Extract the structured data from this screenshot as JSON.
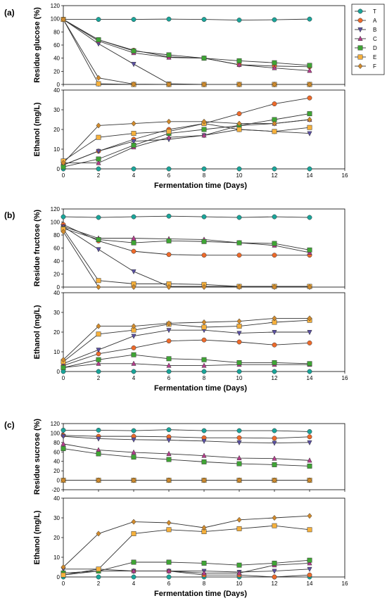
{
  "styles": {
    "T": {
      "color": "#1aa59a",
      "marker": "circle"
    },
    "A": {
      "color": "#ee6a2a",
      "marker": "circle"
    },
    "B": {
      "color": "#5a4fa3",
      "marker": "tri-down"
    },
    "C": {
      "color": "#b43c8c",
      "marker": "tri-up"
    },
    "D": {
      "color": "#3fa535",
      "marker": "square"
    },
    "E": {
      "color": "#f6b13c",
      "marker": "square"
    },
    "F": {
      "color": "#d08a2c",
      "marker": "diamond"
    }
  },
  "legend": [
    "T",
    "A",
    "B",
    "C",
    "D",
    "E",
    "F"
  ],
  "x_ticks": [
    0,
    2,
    4,
    6,
    8,
    10,
    12,
    14,
    16
  ],
  "chart_data": [
    {
      "type": "line",
      "panel": "(a)",
      "ylabel": "Residue glucose (%)",
      "ylim": [
        0,
        120
      ],
      "yticks": [
        0,
        20,
        40,
        60,
        80,
        100,
        120
      ],
      "x": [
        0,
        2,
        4,
        6,
        8,
        10,
        12,
        14
      ],
      "series": [
        {
          "name": "T",
          "values": [
            99,
            99,
            99,
            99.5,
            99,
            98,
            98.5,
            99.5
          ]
        },
        {
          "name": "A",
          "values": [
            99,
            68,
            52,
            42,
            40,
            30,
            28,
            27
          ]
        },
        {
          "name": "B",
          "values": [
            99,
            62,
            31,
            1,
            0,
            0,
            0,
            0
          ]
        },
        {
          "name": "C",
          "values": [
            99,
            66,
            48,
            41,
            40,
            30,
            25,
            21
          ]
        },
        {
          "name": "D",
          "values": [
            99,
            68,
            51,
            45,
            40,
            36,
            33,
            29
          ]
        },
        {
          "name": "E",
          "values": [
            99,
            1,
            0,
            0,
            0,
            0,
            0,
            0
          ]
        },
        {
          "name": "F",
          "values": [
            99,
            10,
            0.5,
            0,
            0,
            0,
            0,
            0
          ]
        }
      ]
    },
    {
      "type": "line",
      "panel": "(a)",
      "ylabel": "Ethanol (mg/L)",
      "xlabel": "Fermentation time (Days)",
      "ylim": [
        0,
        40
      ],
      "yticks": [
        0,
        10,
        20,
        30,
        40
      ],
      "x": [
        0,
        2,
        4,
        6,
        8,
        10,
        12,
        14
      ],
      "series": [
        {
          "name": "T",
          "values": [
            0,
            0,
            0,
            0,
            0,
            0,
            0,
            0
          ]
        },
        {
          "name": "A",
          "values": [
            2,
            9,
            15,
            20,
            23,
            28,
            33,
            36
          ]
        },
        {
          "name": "B",
          "values": [
            2,
            9,
            14,
            15,
            17,
            20,
            19,
            18
          ]
        },
        {
          "name": "C",
          "values": [
            3,
            3,
            11,
            16,
            17,
            22,
            23,
            25
          ]
        },
        {
          "name": "D",
          "values": [
            1,
            5,
            12,
            18,
            20,
            22,
            25,
            28
          ]
        },
        {
          "name": "E",
          "values": [
            4,
            16,
            18,
            19,
            23,
            20,
            19,
            21
          ]
        },
        {
          "name": "F",
          "values": [
            3,
            22,
            23,
            24,
            24,
            23,
            23,
            25
          ]
        }
      ]
    },
    {
      "type": "line",
      "panel": "(b)",
      "ylabel": "Residue fructose (%)",
      "ylim": [
        0,
        120
      ],
      "yticks": [
        0,
        20,
        40,
        60,
        80,
        100,
        120
      ],
      "x": [
        0,
        2,
        4,
        6,
        8,
        10,
        12,
        14
      ],
      "series": [
        {
          "name": "T",
          "values": [
            108,
            107,
            108,
            109,
            108,
            107,
            108,
            107
          ]
        },
        {
          "name": "A",
          "values": [
            96,
            71,
            55,
            50,
            49,
            49,
            49,
            49
          ]
        },
        {
          "name": "B",
          "values": [
            93,
            58,
            24,
            1,
            1,
            1,
            1,
            1
          ]
        },
        {
          "name": "C",
          "values": [
            93,
            75,
            75,
            74,
            73,
            68,
            64,
            53
          ]
        },
        {
          "name": "D",
          "values": [
            90,
            73,
            68,
            71,
            70,
            68,
            67,
            57
          ]
        },
        {
          "name": "E",
          "values": [
            89,
            10,
            5,
            5,
            4,
            1,
            1,
            1
          ]
        },
        {
          "name": "F",
          "values": [
            85,
            0,
            0,
            0,
            0,
            0,
            0,
            0
          ]
        }
      ]
    },
    {
      "type": "line",
      "panel": "(b)",
      "ylabel": "Ethanol (mg/L)",
      "xlabel": "Fermentation time (Days)",
      "ylim": [
        0,
        40
      ],
      "yticks": [
        0,
        10,
        20,
        30,
        40
      ],
      "x": [
        0,
        2,
        4,
        6,
        8,
        10,
        12,
        14
      ],
      "series": [
        {
          "name": "T",
          "values": [
            0,
            0,
            0,
            0,
            0,
            0,
            0,
            0
          ]
        },
        {
          "name": "A",
          "values": [
            3,
            9,
            12,
            15.5,
            16,
            15,
            13.5,
            14.5
          ]
        },
        {
          "name": "B",
          "values": [
            4,
            11,
            18,
            21,
            21,
            19.5,
            20,
            20
          ]
        },
        {
          "name": "C",
          "values": [
            2,
            4,
            4,
            3,
            3,
            3.5,
            3.5,
            3.5
          ]
        },
        {
          "name": "D",
          "values": [
            2,
            6,
            8.5,
            6.5,
            6,
            4.5,
            4.5,
            4
          ]
        },
        {
          "name": "E",
          "values": [
            5,
            19,
            21,
            24,
            22.5,
            23,
            25,
            26
          ]
        },
        {
          "name": "F",
          "values": [
            6,
            23,
            23,
            24.5,
            25,
            25.5,
            27,
            27
          ]
        }
      ]
    },
    {
      "type": "line",
      "panel": "(c)",
      "ylabel": "Residue sucrose (%)",
      "ylim": [
        -20,
        120
      ],
      "yticks": [
        -20,
        0,
        20,
        40,
        60,
        80,
        100,
        120
      ],
      "x": [
        0,
        2,
        4,
        6,
        8,
        10,
        12,
        14
      ],
      "series": [
        {
          "name": "T",
          "values": [
            106,
            106,
            105,
            107,
            105,
            105,
            105,
            103
          ]
        },
        {
          "name": "A",
          "values": [
            95,
            93,
            93,
            92,
            90,
            90,
            89,
            92
          ]
        },
        {
          "name": "B",
          "values": [
            93,
            88,
            86,
            85,
            83,
            80,
            79,
            80
          ]
        },
        {
          "name": "C",
          "values": [
            77,
            64,
            59,
            56,
            52,
            47,
            46,
            42
          ]
        },
        {
          "name": "D",
          "values": [
            67,
            56,
            49,
            44,
            39,
            35,
            33,
            30
          ]
        },
        {
          "name": "E",
          "values": [
            0,
            0,
            0,
            0,
            0,
            0,
            0,
            0
          ]
        },
        {
          "name": "F",
          "values": [
            0,
            0,
            0,
            0,
            0,
            0,
            0,
            0
          ]
        }
      ]
    },
    {
      "type": "line",
      "panel": "(c)",
      "ylabel": "Ethanol (mg/L)",
      "xlabel": "Fermentation time (Days)",
      "ylim": [
        0,
        40
      ],
      "yticks": [
        0,
        10,
        20,
        30,
        40
      ],
      "x": [
        0,
        2,
        4,
        6,
        8,
        10,
        12,
        14
      ],
      "series": [
        {
          "name": "T",
          "values": [
            0,
            0,
            0,
            0,
            0,
            0,
            0,
            0
          ]
        },
        {
          "name": "A",
          "values": [
            1,
            3,
            3,
            3,
            1,
            1,
            0,
            1
          ]
        },
        {
          "name": "B",
          "values": [
            4,
            4,
            3,
            3,
            3,
            2.5,
            3,
            4
          ]
        },
        {
          "name": "C",
          "values": [
            2,
            3,
            3,
            3,
            2,
            2,
            6,
            7
          ]
        },
        {
          "name": "D",
          "values": [
            2,
            3,
            7.5,
            7.5,
            7,
            6,
            7,
            8.5
          ]
        },
        {
          "name": "E",
          "values": [
            1,
            4,
            22,
            24,
            23,
            24.5,
            26,
            24
          ]
        },
        {
          "name": "F",
          "values": [
            5,
            22,
            28,
            27.5,
            25,
            29,
            30,
            31
          ]
        }
      ]
    }
  ]
}
